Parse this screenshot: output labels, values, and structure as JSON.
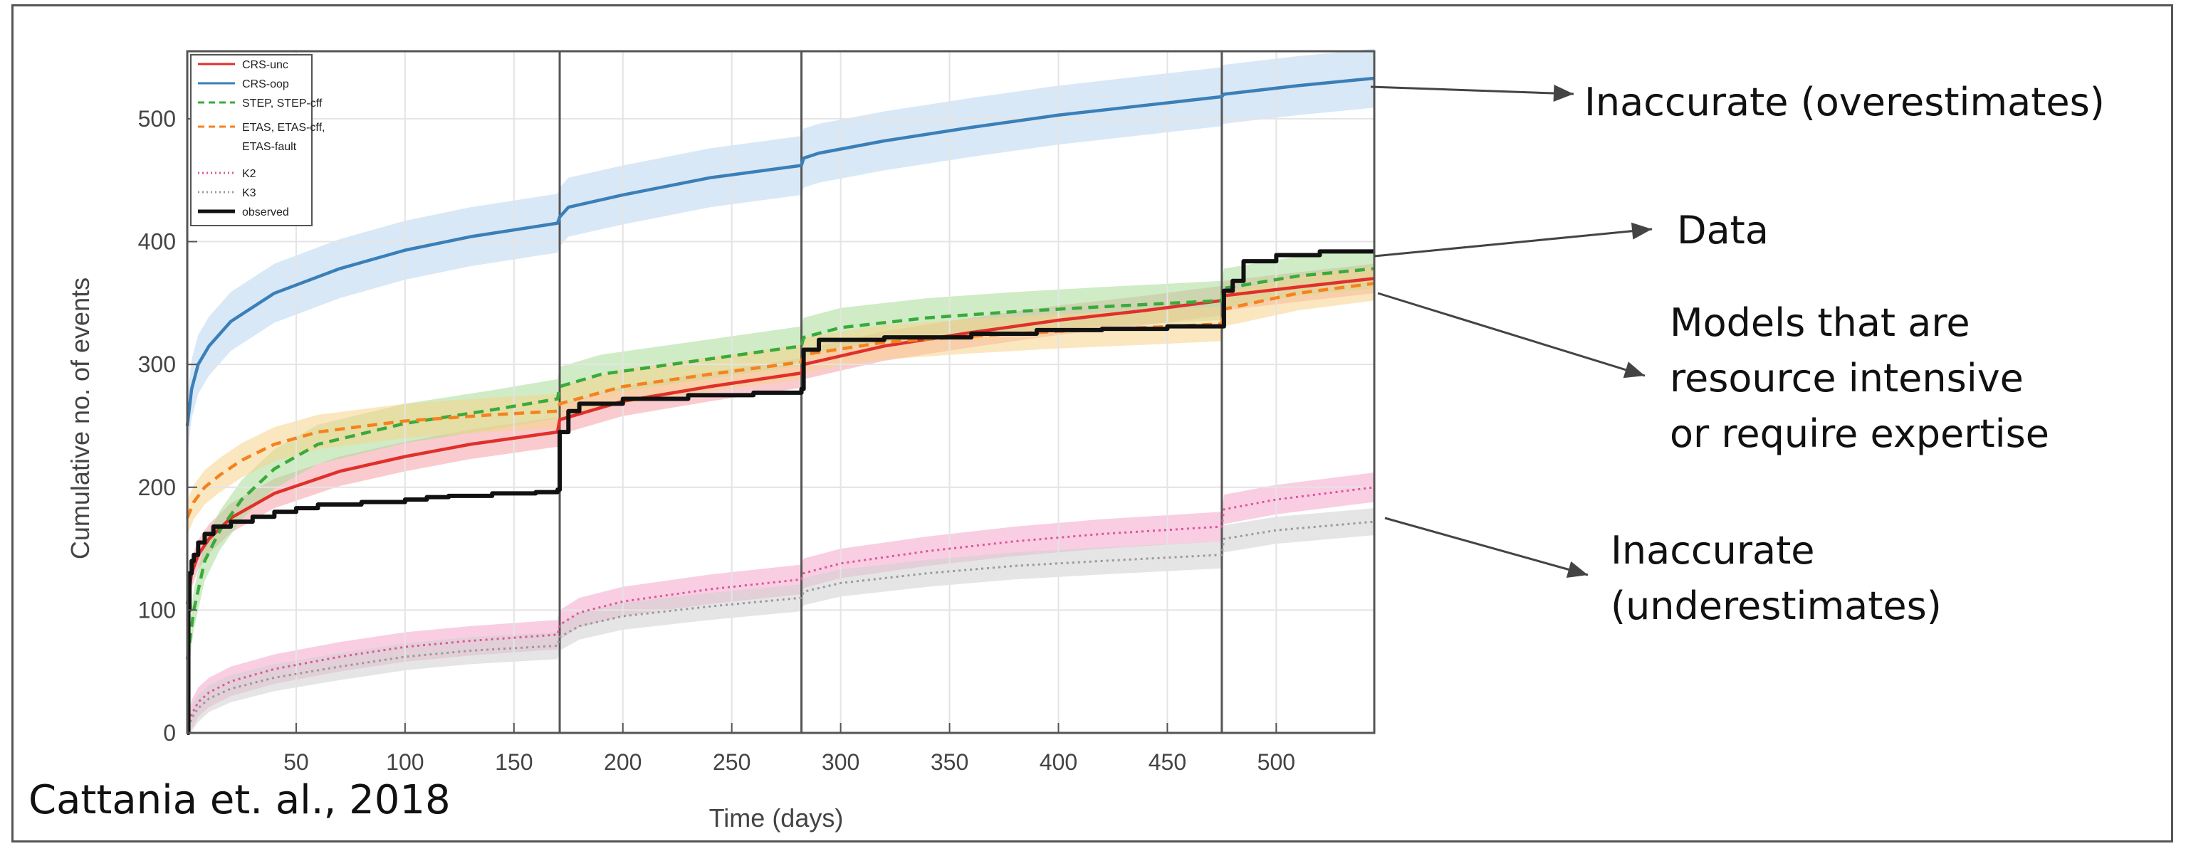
{
  "citation": "Cattania et. al., 2018",
  "annotations": {
    "overestimates": "Inaccurate (overestimates)",
    "data": "Data",
    "models_line1": "Models that are",
    "models_line2": "resource intensive",
    "models_line3": "or require expertise",
    "under_line1": "Inaccurate",
    "under_line2": "(underestimates)"
  },
  "colors": {
    "crs_unc": "#e0302a",
    "crs_oop": "#3a7fb8",
    "step": "#3aaa3a",
    "etas": "#f5821f",
    "k2": "#e0559a",
    "k3": "#9a9a9a",
    "observed": "#111111"
  },
  "chart_data": {
    "type": "line",
    "xlabel": "Time (days)",
    "ylabel": "Cumulative no. of events",
    "xlim": [
      0,
      545
    ],
    "ylim": [
      0,
      555
    ],
    "xticks": [
      50,
      100,
      150,
      200,
      250,
      300,
      350,
      400,
      450,
      500
    ],
    "yticks": [
      0,
      100,
      200,
      300,
      400,
      500
    ],
    "grid": true,
    "legend_position": "top-left",
    "vertical_lines": [
      171,
      282,
      475
    ],
    "series": [
      {
        "name": "CRS-unc",
        "style": "solid",
        "x": [
          0,
          2,
          5,
          10,
          20,
          40,
          70,
          100,
          130,
          170,
          171,
          200,
          240,
          282,
          283,
          320,
          360,
          400,
          440,
          475,
          476,
          510,
          545
        ],
        "y": [
          105,
          130,
          145,
          158,
          175,
          195,
          213,
          225,
          235,
          245,
          255,
          270,
          282,
          293,
          300,
          315,
          326,
          336,
          344,
          352,
          356,
          363,
          370
        ],
        "band": 12
      },
      {
        "name": "CRS-oop",
        "style": "solid",
        "x": [
          0,
          2,
          5,
          10,
          20,
          40,
          70,
          100,
          130,
          170,
          171,
          175,
          200,
          240,
          282,
          283,
          290,
          320,
          360,
          400,
          440,
          475,
          476,
          510,
          545
        ],
        "y": [
          250,
          280,
          300,
          315,
          335,
          358,
          378,
          393,
          404,
          415,
          420,
          428,
          438,
          452,
          462,
          468,
          472,
          482,
          493,
          503,
          511,
          518,
          520,
          527,
          533
        ],
        "band": 24
      },
      {
        "name": "STEP, STEP-cff",
        "style": "dashed",
        "x": [
          0,
          3,
          8,
          15,
          25,
          40,
          60,
          100,
          140,
          170,
          171,
          190,
          230,
          282,
          283,
          300,
          340,
          380,
          420,
          475,
          476,
          510,
          545
        ],
        "y": [
          60,
          100,
          140,
          165,
          190,
          215,
          235,
          252,
          263,
          272,
          282,
          292,
          302,
          315,
          322,
          330,
          338,
          343,
          347,
          352,
          362,
          372,
          378
        ],
        "band": 16
      },
      {
        "name": "ETAS, ETAS-cff, ETAS-fault",
        "style": "dashed",
        "x": [
          0,
          3,
          8,
          15,
          25,
          40,
          60,
          100,
          140,
          170,
          171,
          200,
          240,
          282,
          283,
          320,
          360,
          400,
          440,
          475,
          476,
          510,
          545
        ],
        "y": [
          175,
          188,
          200,
          210,
          222,
          235,
          245,
          254,
          259,
          262,
          268,
          282,
          292,
          302,
          308,
          318,
          323,
          327,
          330,
          333,
          345,
          358,
          366
        ],
        "band": 14
      },
      {
        "name": "K2",
        "style": "dotted",
        "x": [
          0,
          2,
          5,
          10,
          20,
          40,
          70,
          100,
          130,
          170,
          171,
          180,
          200,
          240,
          282,
          283,
          300,
          340,
          380,
          420,
          475,
          476,
          500,
          545
        ],
        "y": [
          0,
          15,
          25,
          33,
          42,
          52,
          62,
          70,
          75,
          80,
          88,
          98,
          107,
          117,
          125,
          130,
          138,
          148,
          156,
          162,
          168,
          182,
          190,
          200
        ],
        "band": 12
      },
      {
        "name": "K3",
        "style": "dotted",
        "x": [
          0,
          2,
          5,
          10,
          20,
          40,
          70,
          100,
          130,
          170,
          171,
          180,
          200,
          240,
          282,
          283,
          300,
          340,
          380,
          420,
          475,
          476,
          500,
          545
        ],
        "y": [
          0,
          12,
          20,
          28,
          36,
          45,
          54,
          62,
          67,
          71,
          78,
          87,
          95,
          103,
          110,
          115,
          122,
          130,
          136,
          140,
          145,
          158,
          165,
          172
        ],
        "band": 11
      },
      {
        "name": "observed",
        "style": "solid",
        "step": true,
        "x": [
          0,
          0.5,
          1,
          2,
          3,
          5,
          8,
          12,
          20,
          30,
          40,
          50,
          60,
          80,
          100,
          110,
          120,
          140,
          160,
          170,
          171,
          175,
          180,
          200,
          230,
          260,
          282,
          283,
          290,
          320,
          360,
          390,
          420,
          450,
          475,
          476,
          480,
          485,
          500,
          520,
          545
        ],
        "y": [
          0,
          100,
          130,
          140,
          145,
          155,
          162,
          168,
          172,
          176,
          180,
          183,
          186,
          188,
          190,
          192,
          193,
          195,
          196,
          198,
          245,
          262,
          268,
          272,
          275,
          277,
          280,
          312,
          320,
          322,
          325,
          328,
          329,
          331,
          331,
          360,
          368,
          384,
          389,
          392,
          392
        ]
      }
    ]
  }
}
